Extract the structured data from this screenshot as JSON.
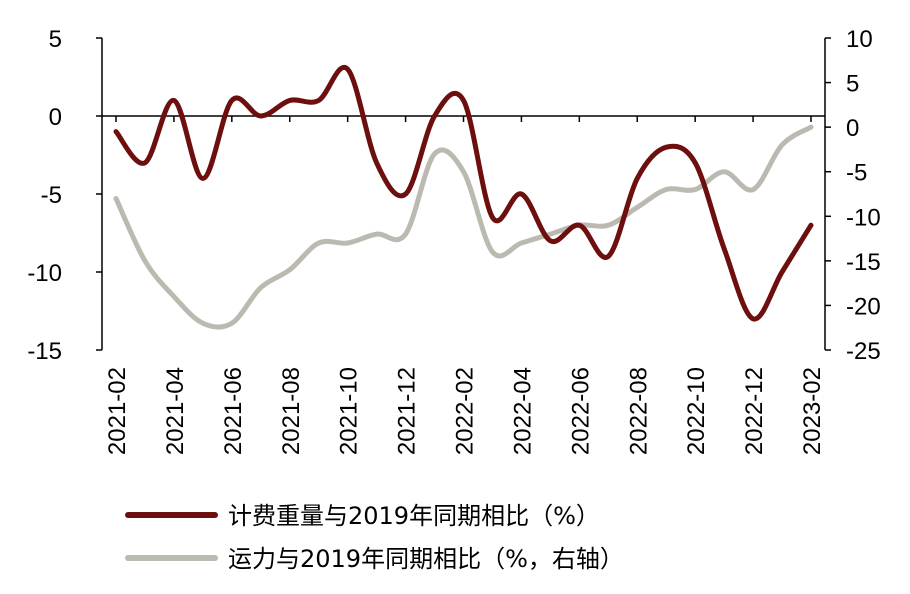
{
  "chart_data": {
    "type": "line",
    "title": "",
    "x": [
      "2021-02",
      "2021-03",
      "2021-04",
      "2021-05",
      "2021-06",
      "2021-07",
      "2021-08",
      "2021-09",
      "2021-10",
      "2021-11",
      "2021-12",
      "2022-01",
      "2022-02",
      "2022-03",
      "2022-04",
      "2022-05",
      "2022-06",
      "2022-07",
      "2022-08",
      "2022-09",
      "2022-10",
      "2022-11",
      "2022-12",
      "2023-01",
      "2023-02"
    ],
    "x_tick_labels": [
      "2021-02",
      "2021-04",
      "2021-06",
      "2021-08",
      "2021-10",
      "2021-12",
      "2022-02",
      "2022-04",
      "2022-06",
      "2022-08",
      "2022-10",
      "2022-12",
      "2023-02"
    ],
    "series": [
      {
        "name": "计费重量与2019年同期相比（%）",
        "axis": "left",
        "color": "#6e0f0f",
        "values": [
          -1,
          -3,
          1,
          -4,
          1,
          0,
          1,
          1,
          3,
          -3,
          -5,
          0,
          1,
          -6.5,
          -5,
          -8,
          -7,
          -9,
          -4,
          -2,
          -3,
          -8.5,
          -13,
          -10,
          -7
        ]
      },
      {
        "name": "运力与2019年同期相比（%，右轴）",
        "axis": "right",
        "color": "#bcbab0",
        "values": [
          -8,
          -15,
          -19,
          -22,
          -22,
          -18,
          -16,
          -13,
          -13,
          -12,
          -12,
          -3,
          -5,
          -14,
          -13,
          -12,
          -11,
          -11,
          -9,
          -7,
          -7,
          -5,
          -7,
          -2,
          0
        ]
      }
    ],
    "y_left": {
      "min": -15,
      "max": 5,
      "ticks": [
        "5",
        "0",
        "-5",
        "-10",
        "-15"
      ]
    },
    "y_right": {
      "min": -25,
      "max": 10,
      "ticks": [
        "10",
        "5",
        "0",
        "-5",
        "-10",
        "-15",
        "-20",
        "-25"
      ]
    },
    "grid": false,
    "legend_position": "bottom-center"
  }
}
